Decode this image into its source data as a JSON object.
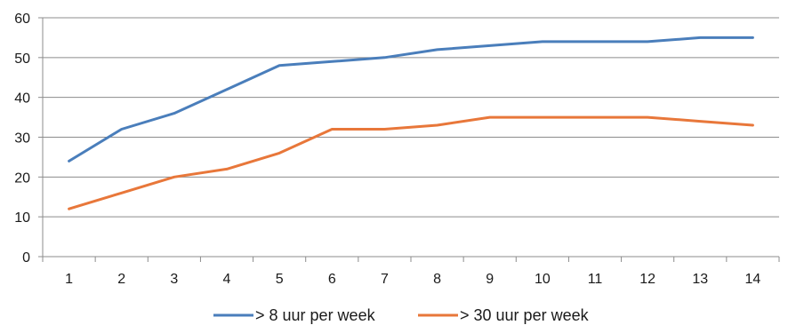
{
  "chart_data": {
    "type": "line",
    "title": "",
    "xlabel": "",
    "ylabel": "",
    "x": [
      1,
      2,
      3,
      4,
      5,
      6,
      7,
      8,
      9,
      10,
      11,
      12,
      13,
      14
    ],
    "ylim": [
      0,
      60
    ],
    "yticks": [
      0,
      10,
      20,
      30,
      40,
      50,
      60
    ],
    "grid": true,
    "legend_position": "bottom",
    "series": [
      {
        "name": "> 8 uur per week",
        "color": "#4a7ebb",
        "values": [
          24,
          32,
          36,
          42,
          48,
          49,
          50,
          52,
          53,
          54,
          54,
          54,
          55,
          55
        ]
      },
      {
        "name": "> 30 uur per week",
        "color": "#e8773a",
        "values": [
          12,
          16,
          20,
          22,
          26,
          32,
          32,
          33,
          35,
          35,
          35,
          35,
          34,
          33
        ]
      }
    ]
  }
}
